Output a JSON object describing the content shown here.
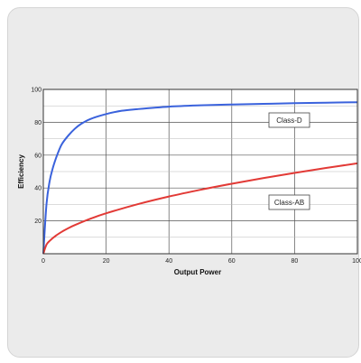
{
  "chart_data": {
    "type": "line",
    "xlabel": "Output Power",
    "ylabel": "Efficiency",
    "xlim": [
      0,
      100
    ],
    "ylim": [
      0,
      100
    ],
    "x_ticks": [
      0,
      20,
      40,
      60,
      80,
      100
    ],
    "y_ticks": [
      20,
      40,
      60,
      80,
      100
    ],
    "x_tick_labels": [
      "0",
      "20",
      "40",
      "60",
      "80",
      "100"
    ],
    "y_tick_labels": [
      "20",
      "40",
      "60",
      "80",
      "100"
    ],
    "grid": true,
    "series": [
      {
        "name": "Class-D",
        "color": "#3a62dc",
        "x": [
          0,
          1,
          2,
          3,
          4,
          5,
          6,
          8,
          10,
          12,
          15,
          20,
          25,
          30,
          40,
          50,
          60,
          70,
          80,
          90,
          100
        ],
        "y": [
          0,
          30,
          44,
          52,
          58,
          63,
          67,
          72,
          76,
          79,
          82,
          85,
          87,
          88,
          89.5,
          90.3,
          90.8,
          91.2,
          91.6,
          91.9,
          92.2
        ]
      },
      {
        "name": "Class-AB",
        "color": "#e23a36",
        "x": [
          0,
          1,
          2,
          4,
          6,
          8,
          10,
          15,
          20,
          30,
          40,
          50,
          60,
          70,
          80,
          90,
          100
        ],
        "y": [
          0,
          5.5,
          7.8,
          11,
          13.5,
          15.6,
          17.4,
          21.3,
          24.6,
          30.1,
          34.8,
          38.9,
          42.6,
          46,
          49.2,
          52.2,
          55
        ]
      }
    ]
  }
}
